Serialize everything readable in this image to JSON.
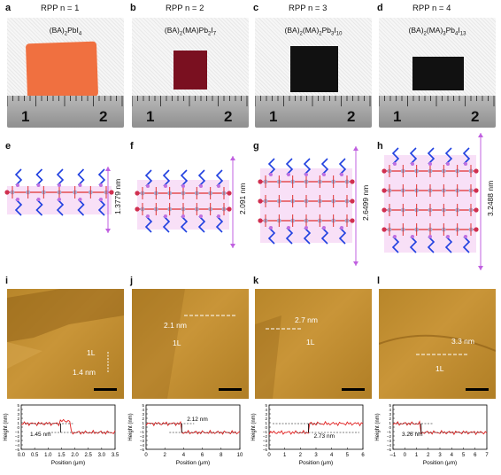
{
  "panels": [
    {
      "id": "a",
      "rpp": "RPP n = 1",
      "formula_parts": [
        "(BA)",
        "2",
        "PbI",
        "4"
      ],
      "ruler": [
        "1",
        "2"
      ]
    },
    {
      "id": "b",
      "rpp": "RPP n = 2",
      "formula_parts": [
        "(BA)",
        "2",
        "(MA)Pb",
        "2",
        "I",
        "7"
      ],
      "ruler": [
        "1",
        "2"
      ]
    },
    {
      "id": "c",
      "rpp": "RPP n = 3",
      "formula_parts": [
        "(BA)",
        "2",
        "(MA)",
        "2",
        "Pb",
        "3",
        "I",
        "10"
      ],
      "ruler": [
        "1",
        "2"
      ]
    },
    {
      "id": "d",
      "rpp": "RPP n = 4",
      "formula_parts": [
        "(BA)",
        "2",
        "(MA)",
        "3",
        "Pb",
        "4",
        "I",
        "13"
      ],
      "ruler": [
        "1",
        "2"
      ]
    }
  ],
  "structures": [
    {
      "id": "e",
      "thickness": "1.3779 nm"
    },
    {
      "id": "f",
      "thickness": "2.091 nm"
    },
    {
      "id": "g",
      "thickness": "2.6499 nm"
    },
    {
      "id": "h",
      "thickness": "3.2488 nm"
    }
  ],
  "afm": [
    {
      "id": "i",
      "layer": "1L",
      "step": "1.4 nm",
      "profile_step": "1.45 nm"
    },
    {
      "id": "j",
      "layer": "1L",
      "step": "2.1 nm",
      "profile_step": "2.12 nm"
    },
    {
      "id": "k",
      "layer": "1L",
      "step": "2.7 nm",
      "profile_step": "2.73 nm"
    },
    {
      "id": "l",
      "layer": "1L",
      "step": "3.3 nm",
      "profile_step": "3.26 nm"
    }
  ],
  "profile_axes": {
    "ylabel": "Height (nm)",
    "xlabel": "Position (μm)",
    "xticks": [
      [
        "0.0",
        "0.5",
        "1.0",
        "1.5",
        "2.0",
        "2.5",
        "3.0",
        "3.5"
      ],
      [
        "0",
        "2",
        "4",
        "6",
        "8",
        "10"
      ],
      [
        "0",
        "1",
        "2",
        "3",
        "4",
        "5",
        "6"
      ],
      [
        "–1",
        "0",
        "1",
        "2",
        "3",
        "4",
        "5",
        "6",
        "7"
      ]
    ],
    "yticks": [
      "–5",
      "–4",
      "–3",
      "–2",
      "–1",
      "0",
      "1",
      "2",
      "3",
      "4",
      "5"
    ]
  },
  "colors": {
    "photo_a": "#f07040",
    "photo_b": "#7a1020",
    "photo_cd": "#111111",
    "afm": "#b8862a",
    "afm_dark": "#8a5c14",
    "profile_line": "#e02020",
    "arrow": "#c060e0",
    "pb": "#e03030",
    "i": "#d03050",
    "n": "#2040e0"
  }
}
